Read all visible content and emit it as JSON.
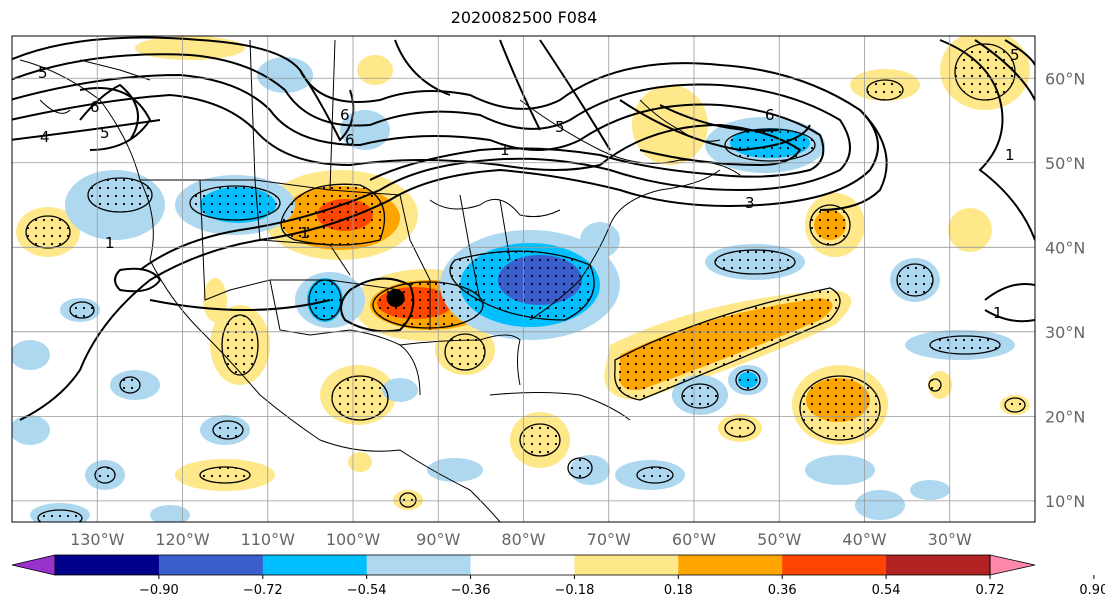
{
  "title": "2020082500 F084",
  "map": {
    "projection": "cylindrical",
    "lon_range": [
      -140,
      -20
    ],
    "lat_range": [
      7.5,
      65
    ]
  },
  "lon_labels": [
    "130°W",
    "120°W",
    "110°W",
    "100°W",
    "90°W",
    "80°W",
    "70°W",
    "60°W",
    "50°W",
    "40°W",
    "30°W"
  ],
  "lon_values": [
    -130,
    -120,
    -110,
    -100,
    -90,
    -80,
    -70,
    -60,
    -50,
    -40,
    -30
  ],
  "lat_labels": [
    "10°N",
    "20°N",
    "30°N",
    "40°N",
    "50°N",
    "60°N"
  ],
  "lat_values": [
    10,
    20,
    30,
    40,
    50,
    60
  ],
  "colorbar": {
    "tick_labels": [
      "−0.90",
      "−0.72",
      "−0.54",
      "−0.36",
      "−0.18",
      "0.18",
      "0.36",
      "0.54",
      "0.72",
      "0.90"
    ],
    "colors": [
      "#9932cc",
      "#00008b",
      "#3a5fcd",
      "#00bfff",
      "#add8f0",
      "#ffffff",
      "#ffe88a",
      "#ffa500",
      "#ff4500",
      "#b22222",
      "#ff88aa"
    ]
  },
  "contour_labels": [
    "5",
    "6",
    "4",
    "5",
    "6",
    "1",
    "5",
    "6",
    "3",
    "6",
    "5",
    "1",
    "1",
    "1",
    "1"
  ],
  "marker": {
    "lon": -95,
    "lat": 34,
    "color": "#000000"
  },
  "colors": {
    "land": "#ffffff",
    "ocean": "#ffffff",
    "border": "#000000",
    "grid": "#999999"
  }
}
